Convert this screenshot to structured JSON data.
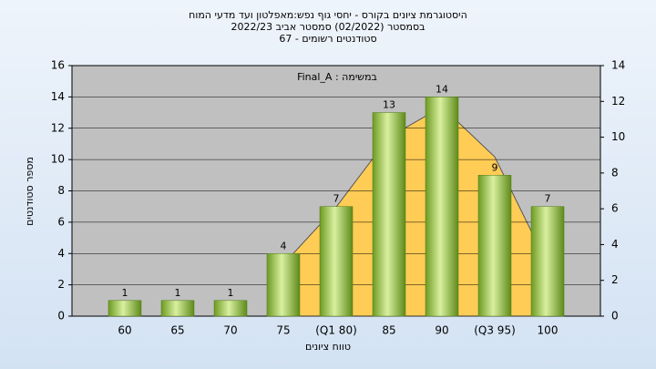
{
  "chart_data": {
    "type": "bar",
    "title": "היסטוגרמת ציונים בקורס - יחסי גוף נפש:מאפלטון ועד מדעי המוח",
    "subtitle": "בסמסטר (02/2022)  סמסטר אביב 2022/23",
    "subtitle2": "סטודנטים רשומים - 67",
    "annotation": "Final_A : במשימה",
    "ylabel": "מספר סטודנטים",
    "xlabel": "טווח ציונים",
    "categories": [
      "60",
      "65",
      "70",
      "75",
      "(Q1 80)",
      "85",
      "90",
      "(Q3 95)",
      "100"
    ],
    "series": [
      {
        "type": "bar",
        "color": "#8dbb3a",
        "values": [
          1,
          1,
          1,
          4,
          7,
          13,
          14,
          9,
          7
        ]
      },
      {
        "type": "area",
        "axis": "y2",
        "color": "#ffcc55",
        "values": [
          null,
          null,
          null,
          2.9,
          6.1,
          10,
          11.7,
          8.9,
          2.9
        ]
      }
    ],
    "ylim": [
      0,
      16
    ],
    "yticks": [
      0,
      2,
      4,
      6,
      8,
      10,
      12,
      14,
      16
    ],
    "y2lim": [
      0,
      14
    ],
    "y2ticks": [
      0,
      2,
      4,
      6,
      8,
      10,
      12,
      14
    ],
    "grid": true
  }
}
